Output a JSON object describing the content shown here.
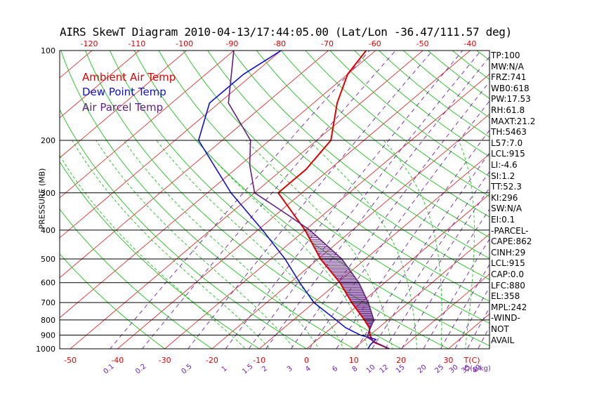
{
  "chart_data": {
    "type": "line",
    "title": "AIRS SkewT Diagram 2010-04-13/17:44:05.00 (Lat/Lon -36.47/111.57 deg)",
    "ylabel": "PRESSURE (MB)",
    "xlabel": "T(C)",
    "mixing_ratio_unit": "Q(g/kg)",
    "ylim": [
      1000,
      100
    ],
    "y_scale": "log",
    "pressure_ticks": [
      100,
      200,
      300,
      400,
      500,
      600,
      700,
      800,
      900,
      1000
    ],
    "temp_ticks_top": [
      -120,
      -110,
      -100,
      -90,
      -80,
      -70,
      -60,
      -50,
      -40
    ],
    "temp_ticks_bottom": [
      -50,
      -40,
      -30,
      -20,
      -10,
      0,
      10,
      20,
      30
    ],
    "mixing_ratio_ticks": [
      "0.1",
      "0.2",
      "0.5",
      "1",
      "1.5",
      "2",
      "3",
      "4",
      "6",
      "8",
      "10",
      "12",
      "15",
      "20",
      "25",
      "30",
      "35",
      "40"
    ],
    "legend": [
      {
        "label": "Ambient Air Temp",
        "color": "#e00000"
      },
      {
        "label": "Dew Point Temp",
        "color": "#1010d0"
      },
      {
        "label": "Air Parcel Temp",
        "color": "#602080"
      }
    ],
    "series": [
      {
        "name": "Ambient Air Temp",
        "color": "#e00000",
        "points": [
          [
            1000,
            17.5
          ],
          [
            950,
            12.5
          ],
          [
            900,
            10
          ],
          [
            850,
            8
          ],
          [
            800,
            5
          ],
          [
            700,
            -2
          ],
          [
            600,
            -9.5
          ],
          [
            500,
            -19.5
          ],
          [
            400,
            -30
          ],
          [
            300,
            -45
          ],
          [
            250,
            -45
          ],
          [
            200,
            -47
          ],
          [
            150,
            -55
          ],
          [
            120,
            -60
          ],
          [
            100,
            -62
          ]
        ]
      },
      {
        "name": "Dew Point Temp",
        "color": "#1010d0",
        "points": [
          [
            1000,
            13
          ],
          [
            970,
            12.5
          ],
          [
            930,
            12.3
          ],
          [
            900,
            8
          ],
          [
            850,
            3
          ],
          [
            800,
            -1
          ],
          [
            700,
            -10
          ],
          [
            600,
            -18
          ],
          [
            500,
            -27
          ],
          [
            400,
            -39
          ],
          [
            300,
            -55
          ],
          [
            200,
            -75
          ],
          [
            150,
            -82
          ],
          [
            120,
            -82
          ],
          [
            100,
            -80
          ]
        ]
      },
      {
        "name": "Air Parcel Temp",
        "color": "#602080",
        "points": [
          [
            1000,
            17.5
          ],
          [
            950,
            12.8
          ],
          [
            915,
            10
          ],
          [
            880,
            9
          ],
          [
            800,
            7
          ],
          [
            700,
            1.5
          ],
          [
            600,
            -5.5
          ],
          [
            500,
            -15
          ],
          [
            400,
            -29
          ],
          [
            358,
            -37
          ],
          [
            300,
            -50
          ],
          [
            242,
            -58
          ],
          [
            200,
            -64
          ],
          [
            150,
            -78
          ],
          [
            100,
            -90
          ]
        ]
      }
    ],
    "cape_shading": {
      "color": "#602080",
      "from_hPa": 880,
      "to_hPa": 400
    },
    "grid": true
  },
  "stats": [
    "TP:100",
    "MW:N/A",
    "FRZ:741",
    "WB0:618",
    "PW:17.53",
    "RH:61.8",
    "MAXT:21.2",
    "TH:5463",
    "L57:7.0",
    "LCL:915",
    "LI:-4.6",
    "SI:1.2",
    "TT:52.3",
    "KI:296",
    "SW:N/A",
    "EI:0.1",
    "-PARCEL-",
    "CAPE:862",
    "CINH:29",
    "LCL:915",
    "CAP:0.0",
    "LFC:880",
    "EL:358",
    "MPL:242",
    "-WIND-",
    "NOT",
    "AVAIL"
  ]
}
